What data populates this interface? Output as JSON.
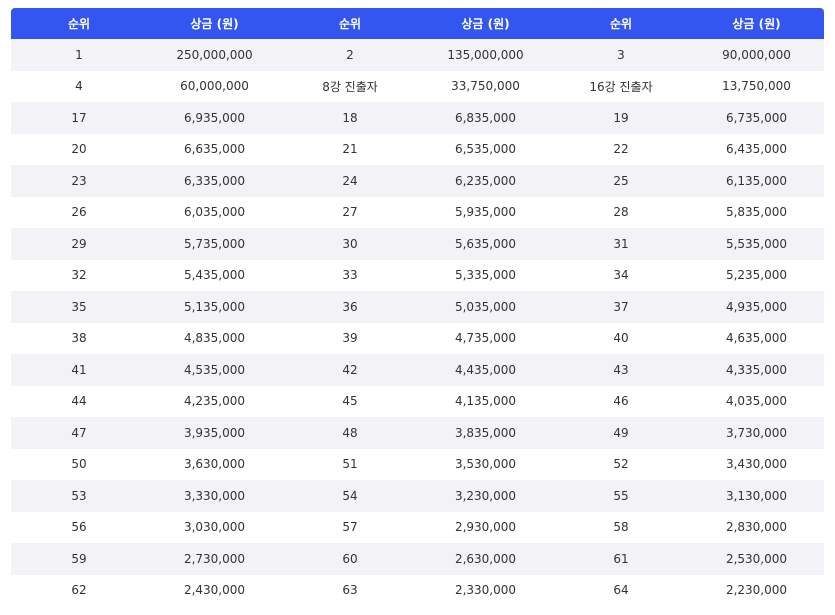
{
  "table": {
    "headers": [
      "순위",
      "상금 (원)",
      "순위",
      "상금 (원)",
      "순위",
      "상금 (원)"
    ],
    "rows": [
      [
        "1",
        "250,000,000",
        "2",
        "135,000,000",
        "3",
        "90,000,000"
      ],
      [
        "4",
        "60,000,000",
        "8강 진출자",
        "33,750,000",
        "16강 진출자",
        "13,750,000"
      ],
      [
        "17",
        "6,935,000",
        "18",
        "6,835,000",
        "19",
        "6,735,000"
      ],
      [
        "20",
        "6,635,000",
        "21",
        "6,535,000",
        "22",
        "6,435,000"
      ],
      [
        "23",
        "6,335,000",
        "24",
        "6,235,000",
        "25",
        "6,135,000"
      ],
      [
        "26",
        "6,035,000",
        "27",
        "5,935,000",
        "28",
        "5,835,000"
      ],
      [
        "29",
        "5,735,000",
        "30",
        "5,635,000",
        "31",
        "5,535,000"
      ],
      [
        "32",
        "5,435,000",
        "33",
        "5,335,000",
        "34",
        "5,235,000"
      ],
      [
        "35",
        "5,135,000",
        "36",
        "5,035,000",
        "37",
        "4,935,000"
      ],
      [
        "38",
        "4,835,000",
        "39",
        "4,735,000",
        "40",
        "4,635,000"
      ],
      [
        "41",
        "4,535,000",
        "42",
        "4,435,000",
        "43",
        "4,335,000"
      ],
      [
        "44",
        "4,235,000",
        "45",
        "4,135,000",
        "46",
        "4,035,000"
      ],
      [
        "47",
        "3,935,000",
        "48",
        "3,835,000",
        "49",
        "3,730,000"
      ],
      [
        "50",
        "3,630,000",
        "51",
        "3,530,000",
        "52",
        "3,430,000"
      ],
      [
        "53",
        "3,330,000",
        "54",
        "3,230,000",
        "55",
        "3,130,000"
      ],
      [
        "56",
        "3,030,000",
        "57",
        "2,930,000",
        "58",
        "2,830,000"
      ],
      [
        "59",
        "2,730,000",
        "60",
        "2,630,000",
        "61",
        "2,530,000"
      ],
      [
        "62",
        "2,430,000",
        "63",
        "2,330,000",
        "64",
        "2,230,000"
      ]
    ]
  },
  "colors": {
    "header_bg": "#3355f0",
    "stripe_bg": "#f3f3f7"
  }
}
